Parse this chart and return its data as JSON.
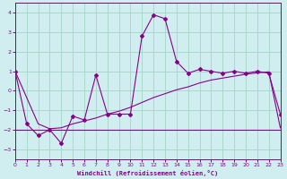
{
  "xlabel": "Windchill (Refroidissement éolien,°C)",
  "bg_color": "#d0eef0",
  "line_color": "#880088",
  "grid_color": "#a8d8cc",
  "xlim": [
    0,
    23
  ],
  "ylim": [
    -3.5,
    4.5
  ],
  "yticks": [
    -3,
    -2,
    -1,
    0,
    1,
    2,
    3,
    4
  ],
  "xticks": [
    0,
    1,
    2,
    3,
    4,
    5,
    6,
    7,
    8,
    9,
    10,
    11,
    12,
    13,
    14,
    15,
    16,
    17,
    18,
    19,
    20,
    21,
    22,
    23
  ],
  "line1_x": [
    0,
    1,
    2,
    3,
    4,
    5,
    6,
    7,
    8,
    9,
    10,
    11,
    12,
    13,
    14,
    15,
    16,
    17,
    18,
    19,
    20,
    21,
    22,
    23
  ],
  "line1_y": [
    1.0,
    -1.7,
    -2.3,
    -2.0,
    -2.7,
    -1.3,
    -1.5,
    0.8,
    -1.2,
    -1.2,
    -1.2,
    2.8,
    3.9,
    3.7,
    1.5,
    0.9,
    1.1,
    1.0,
    0.9,
    1.0,
    0.9,
    1.0,
    0.9,
    -1.2
  ],
  "line2_x": [
    0,
    1,
    2,
    3,
    4,
    5,
    6,
    7,
    8,
    9,
    10,
    11,
    12,
    13,
    14,
    15,
    16,
    17,
    18,
    19,
    20,
    21,
    22,
    23
  ],
  "line2_y": [
    -2.0,
    -2.0,
    -2.0,
    -2.0,
    -2.0,
    -2.0,
    -2.0,
    -2.0,
    -2.0,
    -2.0,
    -2.0,
    -2.0,
    -2.0,
    -2.0,
    -2.0,
    -2.0,
    -2.0,
    -2.0,
    -2.0,
    -2.0,
    -2.0,
    -2.0,
    -2.0,
    -2.0
  ],
  "line3_x": [
    0,
    2,
    3,
    4,
    5,
    6,
    7,
    8,
    9,
    10,
    11,
    12,
    13,
    14,
    15,
    16,
    17,
    18,
    19,
    20,
    21,
    22,
    23
  ],
  "line3_y": [
    1.0,
    -1.7,
    -1.95,
    -1.9,
    -1.7,
    -1.55,
    -1.4,
    -1.2,
    -1.05,
    -0.85,
    -0.6,
    -0.35,
    -0.15,
    0.05,
    0.2,
    0.4,
    0.55,
    0.65,
    0.75,
    0.85,
    0.92,
    0.97,
    -1.9
  ]
}
